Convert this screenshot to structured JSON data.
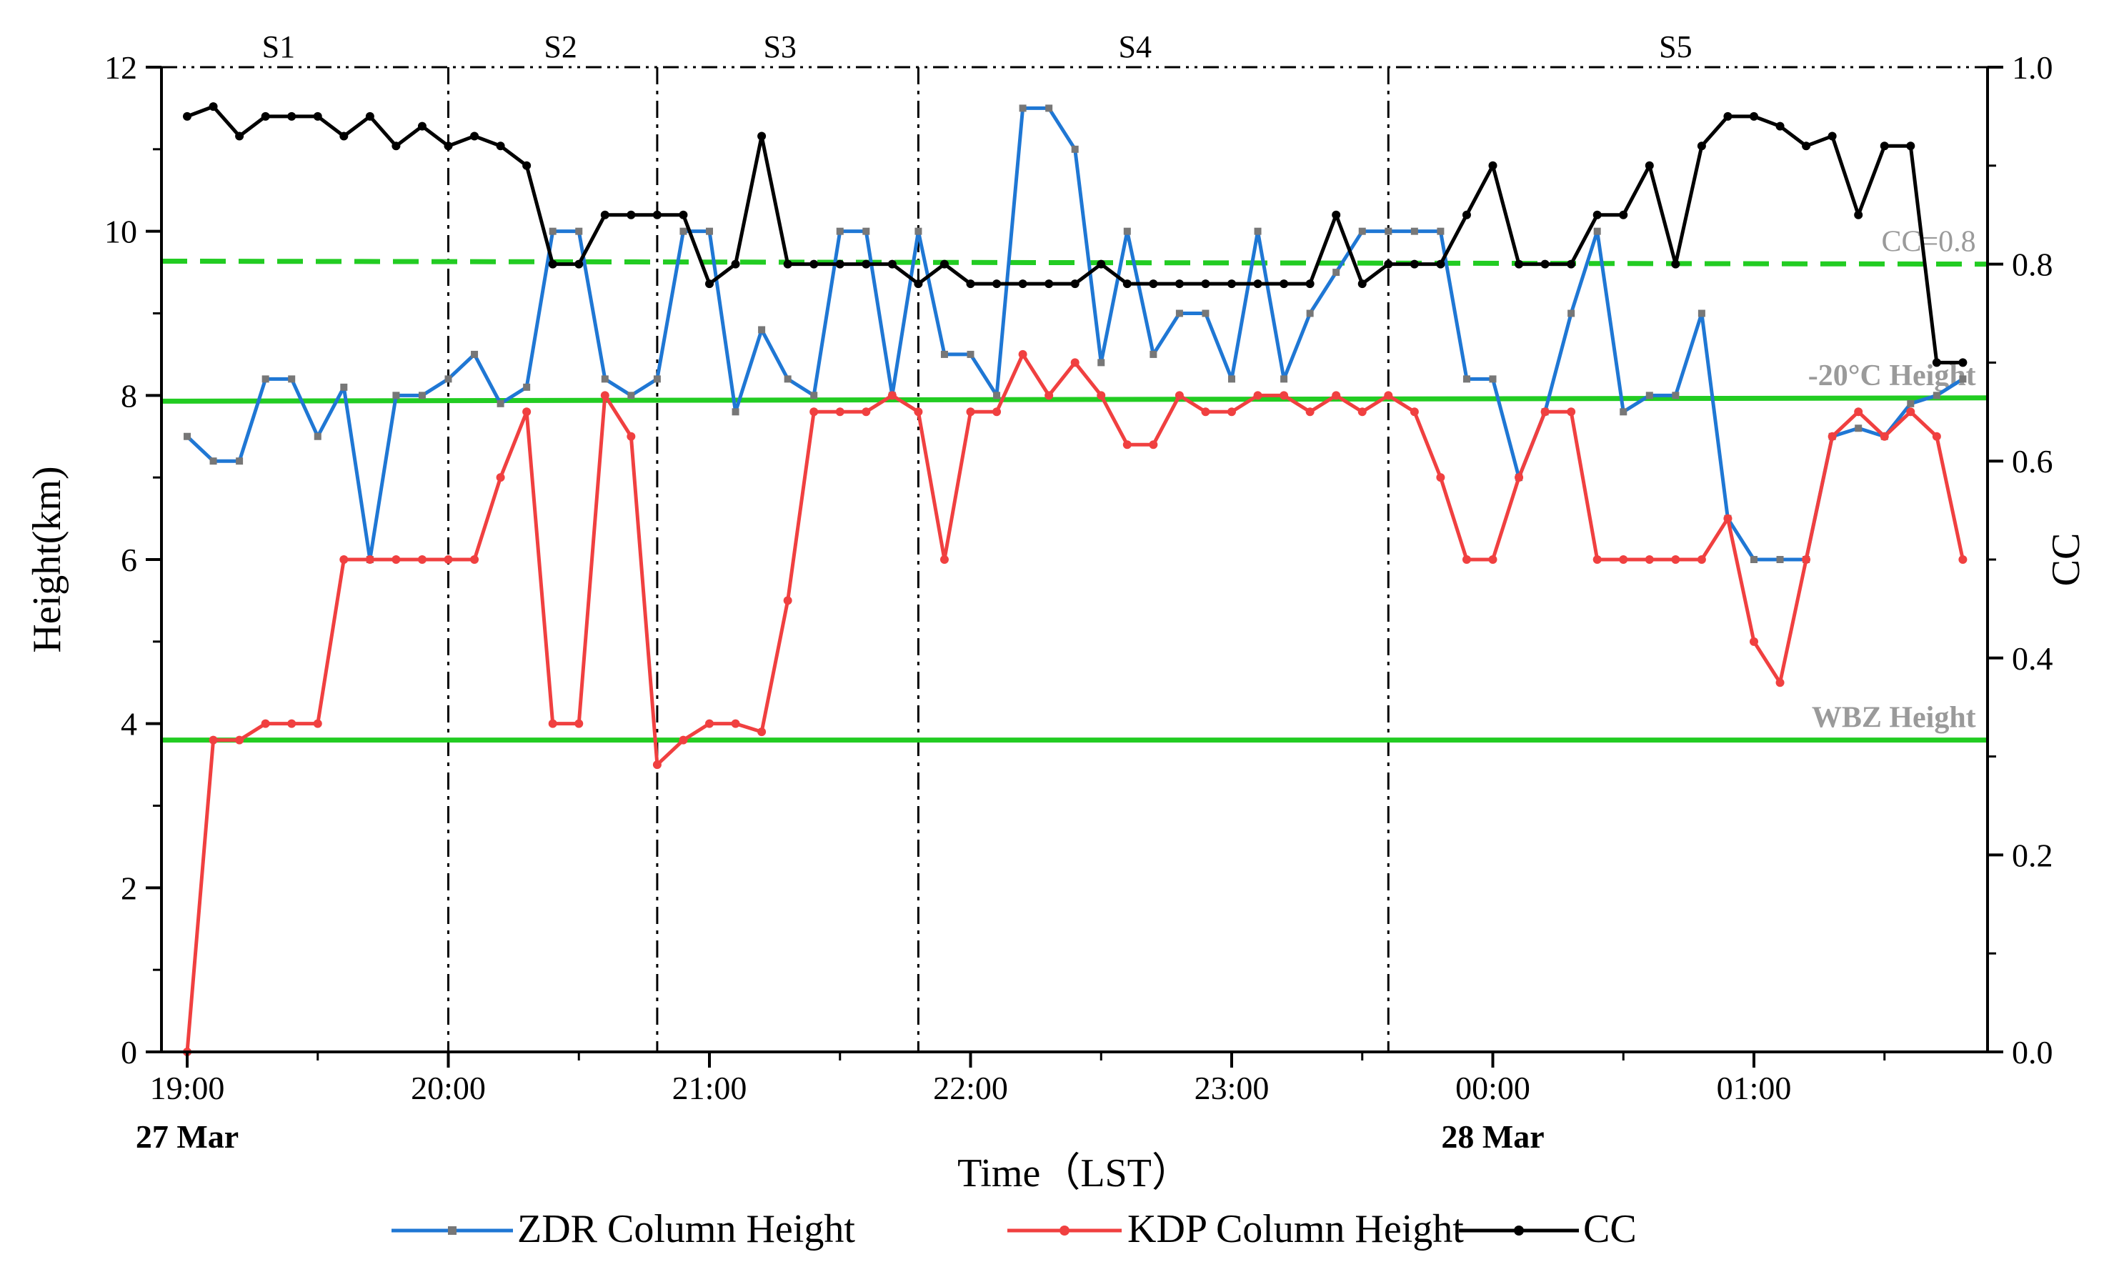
{
  "chart_data": {
    "type": "line",
    "xlabel": "Time（LST）",
    "ylabel_left": "Height(km)",
    "ylabel_right": "CC",
    "x_range": [
      0,
      6.88
    ],
    "ylim_left": [
      0,
      12
    ],
    "ylim_right": [
      0.0,
      1.0
    ],
    "x_ticks": [
      {
        "x": 0,
        "label": "19:00",
        "date": "27 Mar"
      },
      {
        "x": 1,
        "label": "20:00",
        "date": ""
      },
      {
        "x": 2,
        "label": "21:00",
        "date": ""
      },
      {
        "x": 3,
        "label": "22:00",
        "date": ""
      },
      {
        "x": 4,
        "label": "23:00",
        "date": ""
      },
      {
        "x": 5,
        "label": "00:00",
        "date": "28 Mar"
      },
      {
        "x": 6,
        "label": "01:00",
        "date": ""
      }
    ],
    "y_ticks_left": [
      0,
      2,
      4,
      6,
      8,
      10,
      12
    ],
    "y_ticks_right": [
      {
        "v": 0.0,
        "label": "0.0"
      },
      {
        "v": 0.2,
        "label": "0.2"
      },
      {
        "v": 0.4,
        "label": "0.4"
      },
      {
        "v": 0.6,
        "label": "0.6"
      },
      {
        "v": 0.8,
        "label": "0.8"
      },
      {
        "v": 1.0,
        "label": "1.0"
      }
    ],
    "stage_boundaries": [
      1.0,
      1.8,
      2.8,
      4.6
    ],
    "stages": [
      {
        "label": "S1",
        "x": 0.35
      },
      {
        "label": "S2",
        "x": 1.43
      },
      {
        "label": "S3",
        "x": 2.27
      },
      {
        "label": "S4",
        "x": 3.63
      },
      {
        "label": "S5",
        "x": 5.7
      }
    ],
    "reference_lines": [
      {
        "label": "CC=0.8",
        "axis": "right",
        "style": "dashed",
        "y_start": 0.803,
        "y_end": 0.8,
        "label_x": 6.85
      },
      {
        "label": "-20°C Height",
        "axis": "left",
        "style": "solid",
        "y_start": 7.93,
        "y_end": 7.97,
        "label_x": 6.85
      },
      {
        "label": "WBZ Height",
        "axis": "left",
        "style": "solid",
        "y_start": 3.8,
        "y_end": 3.8,
        "label_x": 6.85
      }
    ],
    "x": [
      0.0,
      0.1,
      0.2,
      0.3,
      0.4,
      0.5,
      0.6,
      0.7,
      0.8,
      0.9,
      1.0,
      1.1,
      1.2,
      1.3,
      1.4,
      1.5,
      1.6,
      1.7,
      1.8,
      1.9,
      2.0,
      2.1,
      2.2,
      2.3,
      2.4,
      2.5,
      2.6,
      2.7,
      2.8,
      2.9,
      3.0,
      3.1,
      3.2,
      3.3,
      3.4,
      3.5,
      3.6,
      3.7,
      3.8,
      3.9,
      4.0,
      4.1,
      4.2,
      4.3,
      4.4,
      4.5,
      4.6,
      4.7,
      4.8,
      4.9,
      5.0,
      5.1,
      5.2,
      5.3,
      5.4,
      5.5,
      5.6,
      5.7,
      5.8,
      5.9,
      6.0,
      6.1,
      6.2,
      6.3,
      6.4,
      6.5,
      6.6,
      6.7,
      6.8
    ],
    "series": [
      {
        "name": "ZDR Column Height",
        "axis": "left",
        "color": "#1f77d4",
        "marker": "square",
        "values": [
          7.5,
          7.2,
          7.2,
          8.2,
          8.2,
          7.5,
          8.1,
          6.0,
          8.0,
          8.0,
          8.2,
          8.5,
          7.9,
          8.1,
          10.0,
          10.0,
          8.2,
          8.0,
          8.2,
          10.0,
          10.0,
          7.8,
          8.8,
          8.2,
          8.0,
          10.0,
          10.0,
          8.0,
          10.0,
          8.5,
          8.5,
          8.0,
          11.5,
          11.5,
          11.0,
          8.4,
          10.0,
          8.5,
          9.0,
          9.0,
          8.2,
          10.0,
          8.2,
          9.0,
          9.5,
          10.0,
          10.0,
          10.0,
          10.0,
          8.2,
          8.2,
          7.0,
          7.8,
          9.0,
          10.0,
          7.8,
          8.0,
          8.0,
          9.0,
          6.5,
          6.0,
          6.0,
          6.0,
          7.5,
          7.6,
          7.5,
          7.9,
          8.0,
          8.2
        ]
      },
      {
        "name": "KDP Column Height",
        "axis": "left",
        "color": "#f04040",
        "marker": "circle",
        "values": [
          0.0,
          3.8,
          3.8,
          4.0,
          4.0,
          4.0,
          6.0,
          6.0,
          6.0,
          6.0,
          6.0,
          6.0,
          7.0,
          7.8,
          4.0,
          4.0,
          8.0,
          7.5,
          3.5,
          3.8,
          4.0,
          4.0,
          3.9,
          5.5,
          7.8,
          7.8,
          7.8,
          8.0,
          7.8,
          6.0,
          7.8,
          7.8,
          8.5,
          8.0,
          8.4,
          8.0,
          7.4,
          7.4,
          8.0,
          7.8,
          7.8,
          8.0,
          8.0,
          7.8,
          8.0,
          7.8,
          8.0,
          7.8,
          7.0,
          6.0,
          6.0,
          7.0,
          7.8,
          7.8,
          6.0,
          6.0,
          6.0,
          6.0,
          6.0,
          6.5,
          5.0,
          4.5,
          6.0,
          7.5,
          7.8,
          7.5,
          7.8,
          7.5,
          6.0
        ]
      },
      {
        "name": "CC",
        "axis": "right",
        "color": "#000000",
        "marker": "circle",
        "values": [
          0.95,
          0.96,
          0.93,
          0.95,
          0.95,
          0.95,
          0.93,
          0.95,
          0.92,
          0.94,
          0.92,
          0.93,
          0.92,
          0.9,
          0.8,
          0.8,
          0.85,
          0.85,
          0.85,
          0.85,
          0.78,
          0.8,
          0.93,
          0.8,
          0.8,
          0.8,
          0.8,
          0.8,
          0.78,
          0.8,
          0.78,
          0.78,
          0.78,
          0.78,
          0.78,
          0.8,
          0.78,
          0.78,
          0.78,
          0.78,
          0.78,
          0.78,
          0.78,
          0.78,
          0.85,
          0.78,
          0.8,
          0.8,
          0.8,
          0.85,
          0.9,
          0.8,
          0.8,
          0.8,
          0.85,
          0.85,
          0.9,
          0.8,
          0.92,
          0.95,
          0.95,
          0.94,
          0.92,
          0.93,
          0.85,
          0.92,
          0.92,
          0.7,
          0.7
        ]
      }
    ],
    "legend_position": "bottom"
  }
}
